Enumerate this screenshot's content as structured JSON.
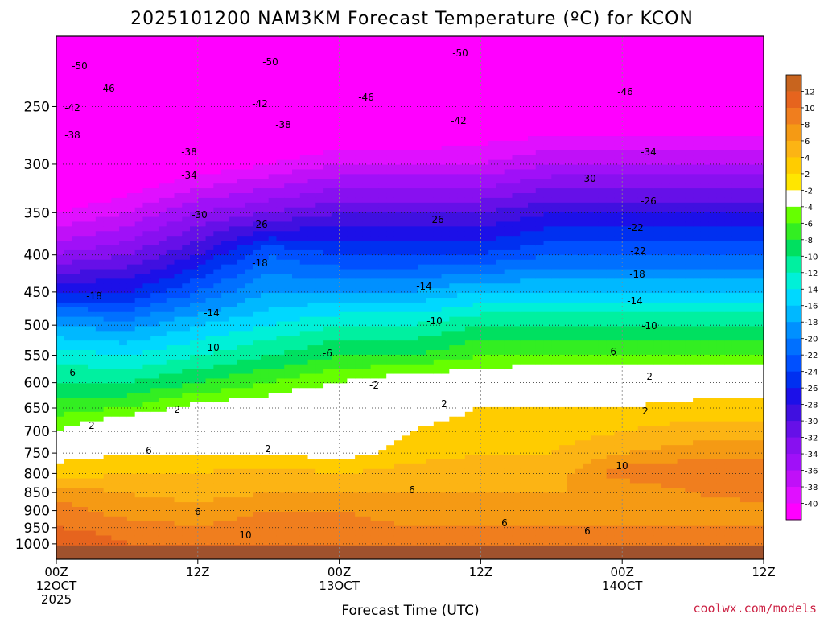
{
  "chart_data": {
    "type": "heatmap",
    "title": "2025101200 NAM3KM Forecast Temperature (ºC) for KCON",
    "xlabel": "Forecast Time (UTC)",
    "ylabel": "",
    "y_scale": "log-pressure",
    "ylim": [
      1050,
      200
    ],
    "y_ticks": [
      "250",
      "300",
      "350",
      "400",
      "450",
      "500",
      "550",
      "600",
      "650",
      "700",
      "750",
      "800",
      "850",
      "900",
      "950",
      "1000"
    ],
    "x_ticks": [
      {
        "line1": "00Z",
        "line2": "12OCT",
        "line3": "2025"
      },
      {
        "line1": "12Z",
        "line2": "",
        "line3": ""
      },
      {
        "line1": "00Z",
        "line2": "13OCT",
        "line3": ""
      },
      {
        "line1": "12Z",
        "line2": "",
        "line3": ""
      },
      {
        "line1": "00Z",
        "line2": "14OCT",
        "line3": ""
      },
      {
        "line1": "12Z",
        "line2": "",
        "line3": ""
      }
    ],
    "x_hours": [
      0,
      12,
      24,
      36,
      48,
      60
    ],
    "grid": true,
    "colorbar": {
      "placement": "right",
      "labels": [
        "12",
        "10",
        "8",
        "6",
        "4",
        "2",
        "-2",
        "-4",
        "-6",
        "-8",
        "-10",
        "-12",
        "-14",
        "-16",
        "-18",
        "-20",
        "-22",
        "-24",
        "-26",
        "-28",
        "-30",
        "-32",
        "-34",
        "-36",
        "-38",
        "-40"
      ],
      "colors": [
        "#e6641e",
        "#f07e1e",
        "#f59a14",
        "#fcb414",
        "#ffcc00",
        "#ffe600",
        "#ffffff",
        "#66ff00",
        "#33ee22",
        "#00e060",
        "#00f0a0",
        "#00f0d8",
        "#00d8ff",
        "#00b8ff",
        "#0090ff",
        "#0070ff",
        "#0050ff",
        "#0030f0",
        "#1c10e8",
        "#4010e0",
        "#6610e8",
        "#8810f0",
        "#a010f8",
        "#c010f8",
        "#e010ff",
        "#ff00ff"
      ]
    },
    "thickness_levels_hPa": [
      1000,
      950,
      900,
      850,
      800,
      750,
      700,
      650,
      600,
      550,
      500,
      450,
      400,
      350,
      300,
      250,
      220
    ],
    "hours": [
      0,
      6,
      12,
      18,
      24,
      30,
      36,
      42,
      48,
      54,
      60
    ],
    "temperature_C": [
      [
        12,
        10,
        9,
        7,
        3,
        1,
        -4,
        -7,
        -10,
        -13,
        -18,
        -26,
        -34,
        -40,
        -46,
        -50,
        -52
      ],
      [
        10,
        9,
        7,
        6,
        4,
        2,
        0,
        -6,
        -10,
        -14,
        -19,
        -26,
        -32,
        -38,
        -44,
        -50,
        -52
      ],
      [
        10,
        8,
        7,
        5,
        4,
        2,
        1,
        -3,
        -8,
        -12,
        -16,
        -22,
        -28,
        -34,
        -42,
        -48,
        -52
      ],
      [
        10,
        9,
        8,
        6,
        5,
        2,
        0,
        -2,
        -6,
        -10,
        -14,
        -18,
        -22,
        -32,
        -40,
        -48,
        -50
      ],
      [
        10,
        9,
        8,
        6,
        4,
        1,
        -1,
        0,
        -4,
        -8,
        -12,
        -18,
        -24,
        -30,
        -38,
        -46,
        -50
      ],
      [
        9,
        8,
        7,
        6,
        5,
        3,
        2,
        1,
        -2,
        -8,
        -12,
        -18,
        -24,
        -30,
        -38,
        -46,
        -50
      ],
      [
        9,
        8,
        7,
        6,
        5,
        4,
        3,
        2,
        -2,
        -6,
        -10,
        -16,
        -24,
        -30,
        -38,
        -44,
        -50
      ],
      [
        9,
        8,
        7,
        6,
        5,
        4,
        3,
        2,
        0,
        -6,
        -10,
        -16,
        -22,
        -28,
        -36,
        -44,
        -50
      ],
      [
        9,
        8,
        7,
        6,
        9,
        6,
        4,
        2,
        -1,
        -6,
        -10,
        -16,
        -22,
        -28,
        -36,
        -44,
        -50
      ],
      [
        9,
        8,
        7,
        8,
        10,
        7,
        5,
        3,
        0,
        -6,
        -10,
        -16,
        -22,
        -28,
        -36,
        -44,
        -50
      ],
      [
        9,
        8,
        7,
        9,
        10,
        7,
        5,
        3,
        0,
        -6,
        -10,
        -16,
        -22,
        -28,
        -36,
        -44,
        -50
      ]
    ],
    "contour_labels": [
      "-50",
      "-50",
      "-50",
      "-46",
      "-46",
      "-46",
      "-42",
      "-42",
      "-42",
      "-38",
      "-38",
      "-38",
      "-34",
      "-34",
      "-30",
      "-30",
      "-26",
      "-26",
      "-26",
      "-22",
      "-22",
      "-18",
      "-18",
      "-18",
      "-14",
      "-14",
      "-14",
      "-10",
      "-10",
      "-10",
      "-6",
      "-6",
      "-6",
      "-2",
      "-2",
      "-2",
      "2",
      "2",
      "2",
      "2",
      "6",
      "6",
      "6",
      "6",
      "6",
      "10",
      "10"
    ],
    "footer_credit": "coolwx.com/models"
  }
}
